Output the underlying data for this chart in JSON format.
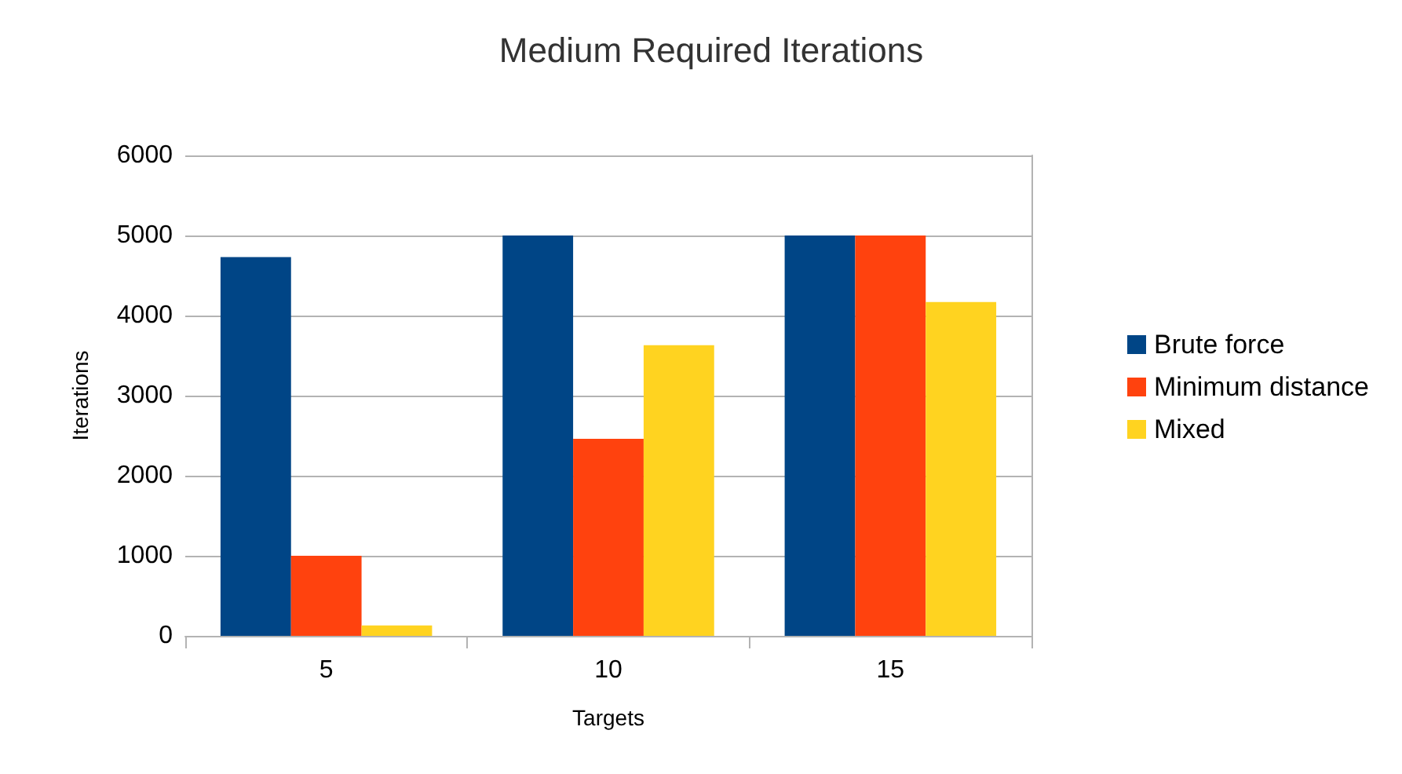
{
  "chart_data": {
    "type": "bar",
    "title": "Medium Required Iterations",
    "xlabel": "Targets",
    "ylabel": "Iterations",
    "categories": [
      "5",
      "10",
      "15"
    ],
    "series": [
      {
        "name": "Brute force",
        "color": "#004586",
        "values": [
          4730,
          5000,
          5000
        ]
      },
      {
        "name": "Minimum distance",
        "color": "#ff420e",
        "values": [
          1000,
          2460,
          5000
        ]
      },
      {
        "name": "Mixed",
        "color": "#ffd320",
        "values": [
          130,
          3630,
          4170
        ]
      }
    ],
    "ylim": [
      0,
      6000
    ],
    "yticks": [
      0,
      1000,
      2000,
      3000,
      4000,
      5000,
      6000
    ],
    "grid": "y",
    "legend": "right"
  }
}
